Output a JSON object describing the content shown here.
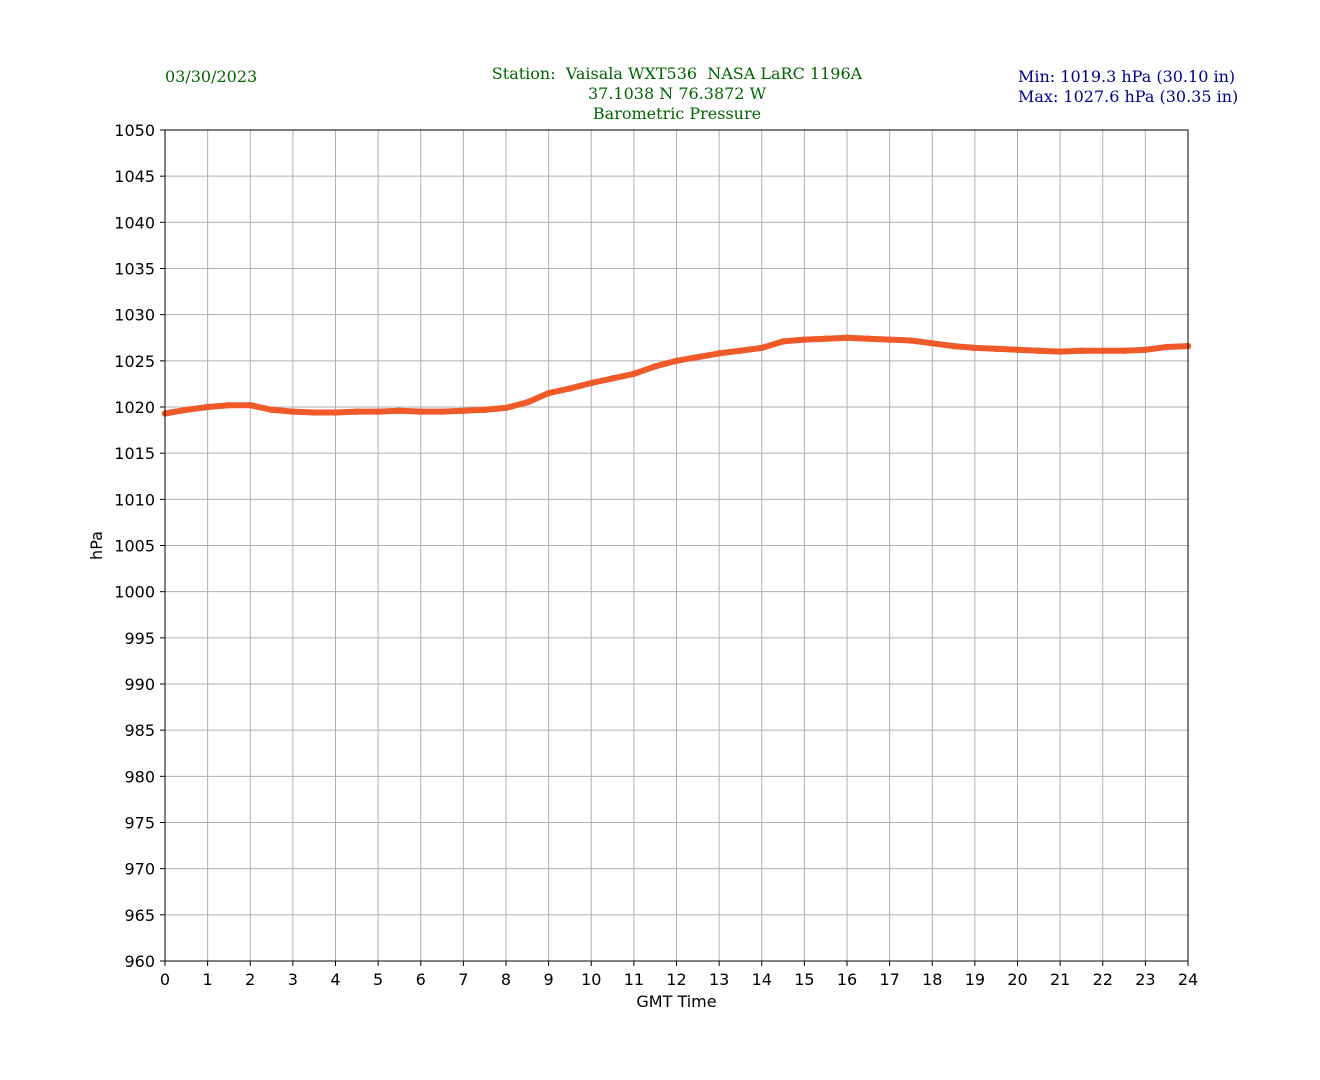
{
  "header": {
    "date": "03/30/2023",
    "station_line": "Station:  Vaisala WXT536  NASA LaRC 1196A",
    "coords_line": "37.1038 N 76.3872 W",
    "variable_line": "Barometric Pressure",
    "min_line": "Min: 1019.3 hPa (30.10 in)",
    "max_line": "Max: 1027.6 hPa (30.35 in)"
  },
  "colors": {
    "line": "#f05a28",
    "grid": "#b0b0b0",
    "date_text": "#006400",
    "minmax_text": "#00008b"
  },
  "chart_data": {
    "type": "line",
    "title": "Barometric Pressure",
    "xlabel": "GMT Time",
    "ylabel": "hPa",
    "xlim": [
      0,
      24
    ],
    "ylim": [
      960,
      1050
    ],
    "xticks": [
      0,
      1,
      2,
      3,
      4,
      5,
      6,
      7,
      8,
      9,
      10,
      11,
      12,
      13,
      14,
      15,
      16,
      17,
      18,
      19,
      20,
      21,
      22,
      23,
      24
    ],
    "yticks": [
      960,
      965,
      970,
      975,
      980,
      985,
      990,
      995,
      1000,
      1005,
      1010,
      1015,
      1020,
      1025,
      1030,
      1035,
      1040,
      1045,
      1050
    ],
    "grid": true,
    "series": [
      {
        "x": [
          0,
          0.5,
          1,
          1.5,
          2,
          2.5,
          3,
          3.5,
          4,
          4.5,
          5,
          5.5,
          6,
          6.5,
          7,
          7.5,
          8,
          8.5,
          9,
          9.5,
          10,
          10.5,
          11,
          11.5,
          12,
          12.5,
          13,
          13.5,
          14,
          14.5,
          15,
          15.5,
          16,
          16.5,
          17,
          17.5,
          18,
          18.5,
          19,
          19.5,
          20,
          20.5,
          21,
          21.5,
          22,
          22.5,
          23,
          23.5,
          24
        ],
        "values": [
          1019.3,
          1019.7,
          1020.0,
          1020.2,
          1020.2,
          1019.7,
          1019.5,
          1019.4,
          1019.4,
          1019.5,
          1019.5,
          1019.6,
          1019.5,
          1019.5,
          1019.6,
          1019.7,
          1019.9,
          1020.5,
          1021.5,
          1022.0,
          1022.6,
          1023.1,
          1023.6,
          1024.4,
          1025.0,
          1025.4,
          1025.8,
          1026.1,
          1026.4,
          1027.1,
          1027.3,
          1027.4,
          1027.5,
          1027.4,
          1027.3,
          1027.2,
          1026.9,
          1026.6,
          1026.4,
          1026.3,
          1026.2,
          1026.1,
          1026.0,
          1026.1,
          1026.1,
          1026.1,
          1026.2,
          1026.5,
          1026.6
        ]
      }
    ]
  }
}
